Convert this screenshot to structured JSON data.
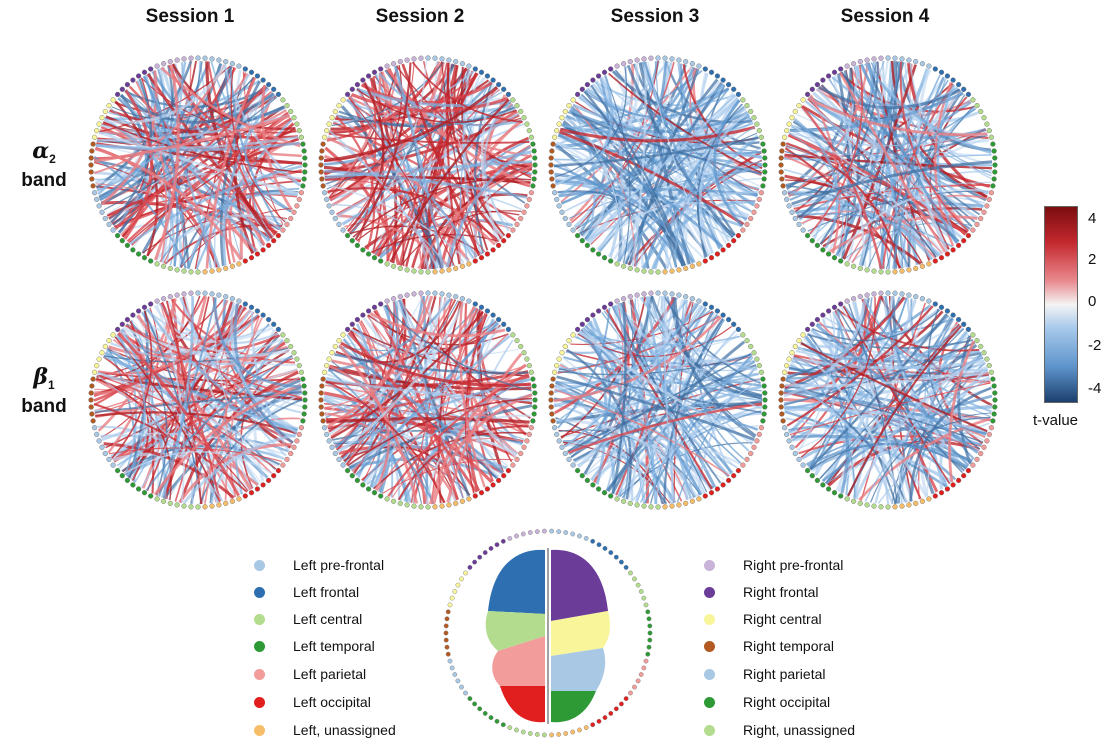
{
  "columns": [
    "Session 1",
    "Session 2",
    "Session 3",
    "Session 4"
  ],
  "rows": [
    {
      "greek": "α",
      "sub": "2",
      "word": "band"
    },
    {
      "greek": "β",
      "sub": "1",
      "word": "band"
    }
  ],
  "colorbar": {
    "label": "t-value",
    "ticks": [
      "4",
      "2",
      "0",
      "-2",
      "-4"
    ],
    "colors": {
      "max": "#7a0d10",
      "pos": "#c3282e",
      "zero": "#f4f4f4",
      "neg": "#5d94cb",
      "min": "#1c3f6e"
    }
  },
  "legend_left": [
    {
      "label": "Left pre-frontal",
      "color": "#a9c8e4"
    },
    {
      "label": "Left frontal",
      "color": "#2d6fb0"
    },
    {
      "label": "Left central",
      "color": "#b4dc8e"
    },
    {
      "label": "Left temporal",
      "color": "#2e9a35"
    },
    {
      "label": "Left parietal",
      "color": "#f29c9c"
    },
    {
      "label": "Left occipital",
      "color": "#e21f1f"
    },
    {
      "label": "Left, unassigned",
      "color": "#f7be6a"
    }
  ],
  "legend_right": [
    {
      "label": "Right pre-frontal",
      "color": "#c9b3d8"
    },
    {
      "label": "Right frontal",
      "color": "#6b3d98"
    },
    {
      "label": "Right central",
      "color": "#f8f59a"
    },
    {
      "label": "Right temporal",
      "color": "#b35a23"
    },
    {
      "label": "Right parietal",
      "color": "#a9c8e4"
    },
    {
      "label": "Right occipital",
      "color": "#2e9a35"
    },
    {
      "label": "Right, unassigned",
      "color": "#b4dc8e"
    }
  ],
  "panels": [
    {
      "session": "Session 1",
      "band": "alpha2",
      "red_fraction": 0.45
    },
    {
      "session": "Session 2",
      "band": "alpha2",
      "red_fraction": 0.55
    },
    {
      "session": "Session 3",
      "band": "alpha2",
      "red_fraction": 0.12
    },
    {
      "session": "Session 4",
      "band": "alpha2",
      "red_fraction": 0.28
    },
    {
      "session": "Session 1",
      "band": "beta1",
      "red_fraction": 0.4
    },
    {
      "session": "Session 2",
      "band": "beta1",
      "red_fraction": 0.52
    },
    {
      "session": "Session 3",
      "band": "beta1",
      "red_fraction": 0.15
    },
    {
      "session": "Session 4",
      "band": "beta1",
      "red_fraction": 0.18
    }
  ]
}
